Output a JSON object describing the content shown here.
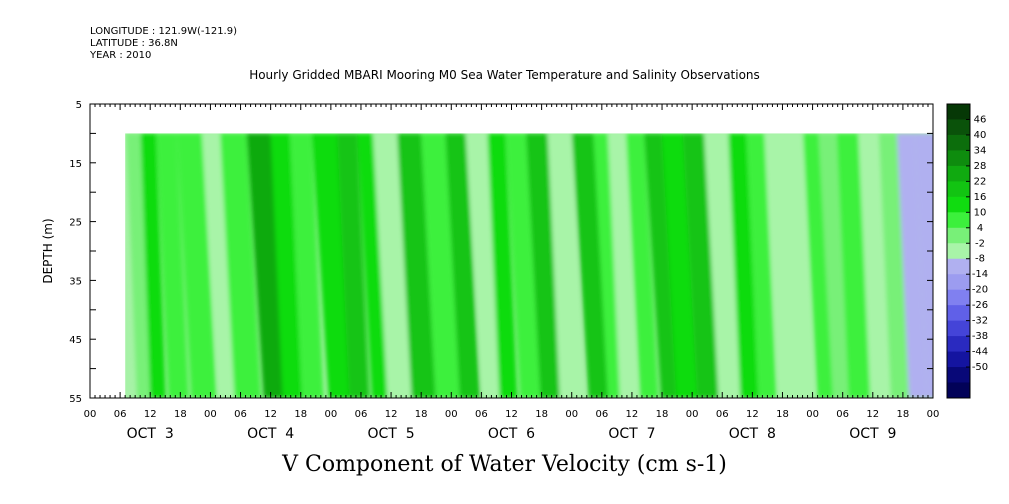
{
  "header": {
    "longitude": "LONGITUDE : 121.9W(-121.9)",
    "latitude": "LATITUDE : 36.8N",
    "year": "YEAR : 2010"
  },
  "chart_data": {
    "type": "heatmap",
    "title": "Hourly Gridded MBARI Mooring M0 Sea Water Temperature and Salinity Observations",
    "caption": "V Component of Water Velocity (cm s-1)",
    "ylabel": "DEPTH (m)",
    "ylim": [
      55,
      5
    ],
    "y_ticks": [
      "5",
      "15",
      "25",
      "35",
      "45",
      "55"
    ],
    "x_hour_ticks": [
      "00",
      "06",
      "12",
      "18",
      "00",
      "06",
      "12",
      "18",
      "00",
      "06",
      "12",
      "18",
      "00",
      "06",
      "12",
      "18",
      "00",
      "06",
      "12",
      "18",
      "00",
      "06",
      "12",
      "18",
      "00",
      "06",
      "12",
      "18",
      "00"
    ],
    "x_day_labels": [
      "OCT  3",
      "OCT  4",
      "OCT  5",
      "OCT  6",
      "OCT  7",
      "OCT  8",
      "OCT  9"
    ],
    "data_depth_range_m": [
      10,
      55
    ],
    "data_time_start": "OCT 3 07:00",
    "colorbar": {
      "labels": [
        "46",
        "40",
        "34",
        "28",
        "22",
        "16",
        "10",
        "4",
        "-2",
        "-8",
        "-14",
        "-20",
        "-26",
        "-32",
        "-38",
        "-44",
        "-50"
      ],
      "colors": [
        "#063806",
        "#0a520a",
        "#0c6e0c",
        "#0e8c0e",
        "#10aa10",
        "#12c412",
        "#10dc10",
        "#3cf03c",
        "#78f078",
        "#a8f4a8",
        "#b0b0f0",
        "#9c9cf0",
        "#8080f0",
        "#6060e8",
        "#4444d8",
        "#2a2ac0",
        "#1414a0",
        "#080878",
        "#020258"
      ]
    },
    "bands": [
      {
        "day": 3.3,
        "slant": 0.09,
        "value": 2
      },
      {
        "day": 3.42,
        "slant": 0.08,
        "value": 11
      },
      {
        "day": 3.55,
        "slant": 0.1,
        "value": 4
      },
      {
        "day": 3.72,
        "slant": 0.12,
        "value": 7
      },
      {
        "day": 3.93,
        "slant": 0.14,
        "value": -5
      },
      {
        "day": 4.08,
        "slant": 0.12,
        "value": 8
      },
      {
        "day": 4.3,
        "slant": 0.14,
        "value": 22
      },
      {
        "day": 4.5,
        "slant": 0.1,
        "value": 14
      },
      {
        "day": 4.66,
        "slant": 0.1,
        "value": 4
      },
      {
        "day": 4.84,
        "slant": 0.14,
        "value": 10
      },
      {
        "day": 5.05,
        "slant": 0.1,
        "value": 20
      },
      {
        "day": 5.22,
        "slant": 0.12,
        "value": 12
      },
      {
        "day": 5.35,
        "slant": 0.12,
        "value": -4
      },
      {
        "day": 5.55,
        "slant": 0.12,
        "value": 16
      },
      {
        "day": 5.75,
        "slant": 0.12,
        "value": 6
      },
      {
        "day": 5.95,
        "slant": 0.12,
        "value": 20
      },
      {
        "day": 6.12,
        "slant": 0.14,
        "value": -6
      },
      {
        "day": 6.3,
        "slant": 0.1,
        "value": 12
      },
      {
        "day": 6.45,
        "slant": 0.12,
        "value": 6
      },
      {
        "day": 6.62,
        "slant": 0.12,
        "value": 20
      },
      {
        "day": 6.8,
        "slant": 0.1,
        "value": -8
      },
      {
        "day": 7.0,
        "slant": 0.14,
        "value": 20
      },
      {
        "day": 7.18,
        "slant": 0.12,
        "value": 6
      },
      {
        "day": 7.3,
        "slant": 0.1,
        "value": -6
      },
      {
        "day": 7.45,
        "slant": 0.12,
        "value": 8
      },
      {
        "day": 7.6,
        "slant": 0.14,
        "value": 16
      },
      {
        "day": 7.75,
        "slant": 0.12,
        "value": 10
      },
      {
        "day": 7.92,
        "slant": 0.12,
        "value": 18
      },
      {
        "day": 8.1,
        "slant": 0.12,
        "value": -4
      },
      {
        "day": 8.3,
        "slant": 0.1,
        "value": 14
      },
      {
        "day": 8.45,
        "slant": 0.1,
        "value": 4
      },
      {
        "day": 8.6,
        "slant": 0.12,
        "value": -8
      },
      {
        "day": 8.75,
        "slant": 0.1,
        "value": -4
      },
      {
        "day": 8.92,
        "slant": 0.12,
        "value": 6
      },
      {
        "day": 9.05,
        "slant": 0.12,
        "value": 0
      },
      {
        "day": 9.2,
        "slant": 0.1,
        "value": 6
      },
      {
        "day": 9.38,
        "slant": 0.1,
        "value": -8
      },
      {
        "day": 9.55,
        "slant": 0.1,
        "value": 2
      },
      {
        "day": 9.7,
        "slant": 0.1,
        "value": -14
      },
      {
        "day": 9.85,
        "slant": 0.1,
        "value": -10
      }
    ]
  }
}
